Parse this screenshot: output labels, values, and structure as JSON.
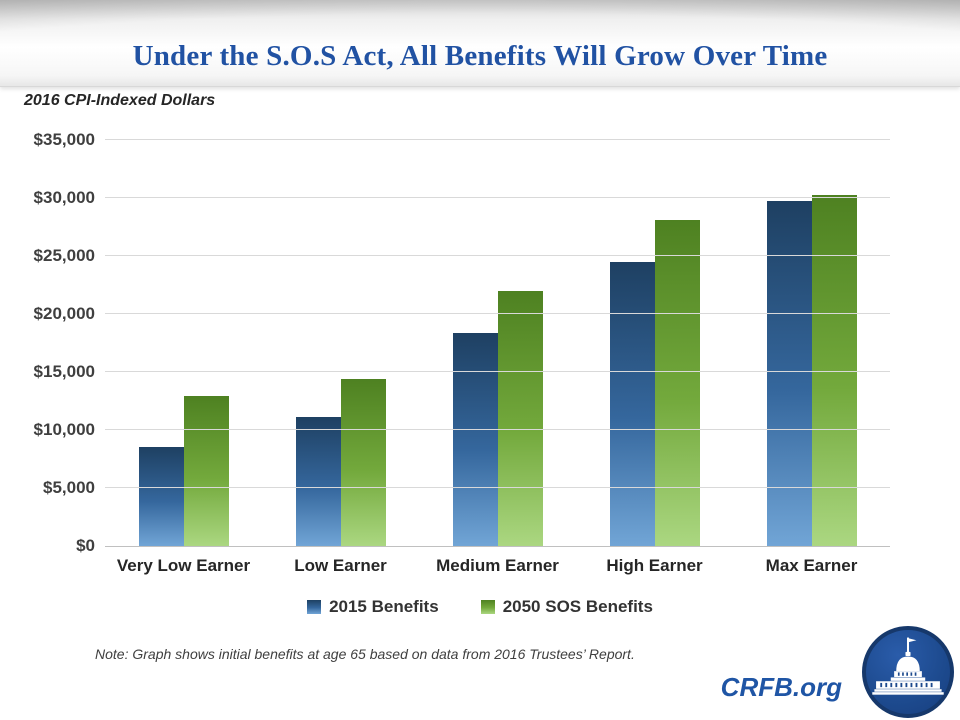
{
  "header": {
    "title": "Under the S.O.S Act, All Benefits Will Grow Over Time"
  },
  "subtitle": "2016 CPI-Indexed Dollars",
  "chart_data": {
    "type": "bar",
    "categories": [
      "Very Low Earner",
      "Low Earner",
      "Medium Earner",
      "High Earner",
      "Max Earner"
    ],
    "series": [
      {
        "name": "2015 Benefits",
        "values": [
          8500,
          11100,
          18400,
          24500,
          29700
        ],
        "gradient": [
          "#1e4062",
          "#35679d",
          "#71a5d6"
        ]
      },
      {
        "name": "2050 SOS Benefits",
        "values": [
          12900,
          14400,
          22000,
          28100,
          30300
        ],
        "gradient": [
          "#4e8121",
          "#73a93c",
          "#abd781"
        ]
      }
    ],
    "title": "Under the S.O.S Act, All Benefits Will Grow Over Time",
    "subtitle": "2016 CPI-Indexed Dollars",
    "xlabel": "",
    "ylabel": "2016 CPI-Indexed Dollars",
    "ylim": [
      0,
      35000
    ],
    "ytick_step": 5000,
    "ytick_labels": [
      "$0",
      "$5,000",
      "$10,000",
      "$15,000",
      "$20,000",
      "$25,000",
      "$30,000",
      "$35,000"
    ],
    "grid": true,
    "legend_position": "bottom"
  },
  "note": "Note: Graph shows initial benefits at age 65 based on data from 2016 Trustees’ Report.",
  "footer": {
    "brand": "CRFB.org"
  },
  "colors": {
    "title_blue": "#2152a3",
    "bar_blue": "#35679d",
    "bar_green": "#73a93c",
    "gridline": "#d9d9d9",
    "axis_line": "#c0c0c0",
    "logo_blue": "#1d4a8e"
  }
}
